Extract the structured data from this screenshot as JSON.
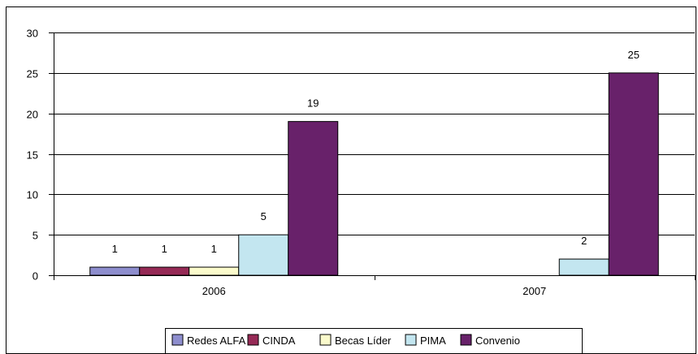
{
  "chart_data": {
    "type": "bar",
    "categories": [
      "2006",
      "2007"
    ],
    "series": [
      {
        "name": "Redes ALFA",
        "color": "#8e8ece",
        "values": [
          1,
          null
        ]
      },
      {
        "name": "CINDA",
        "color": "#962a56",
        "values": [
          1,
          null
        ]
      },
      {
        "name": "Becas Líder",
        "color": "#fbfbcc",
        "values": [
          1,
          null
        ]
      },
      {
        "name": "PIMA",
        "color": "#c3e6f0",
        "values": [
          5,
          2
        ]
      },
      {
        "name": "Convenio",
        "color": "#68216a",
        "values": [
          19,
          25
        ]
      }
    ],
    "ylim": [
      0,
      30
    ],
    "yticks": [
      "0",
      "5",
      "10",
      "15",
      "20",
      "25",
      "30"
    ],
    "grid": true,
    "legend_position": "bottom",
    "show_data_labels": true
  }
}
